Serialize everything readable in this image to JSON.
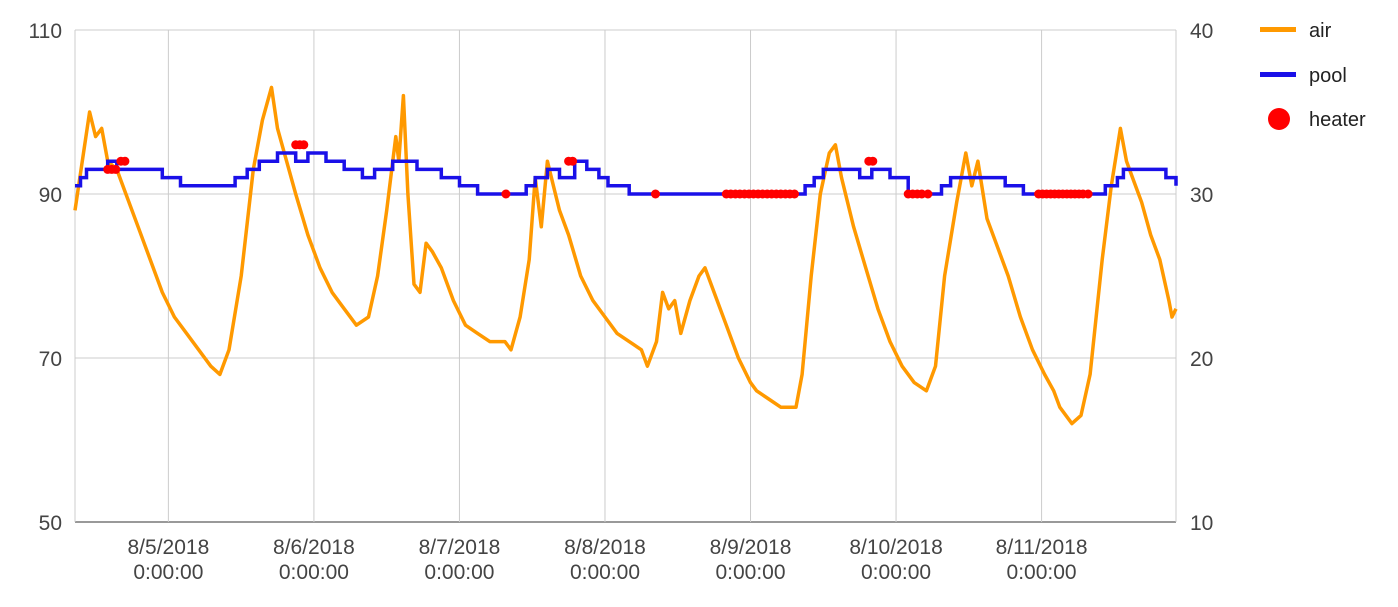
{
  "chart_data": {
    "type": "line",
    "title": "",
    "x_axis": {
      "type": "datetime",
      "range": [
        "2018-08-04T08:36:00",
        "2018-08-11T22:10:00"
      ],
      "tick_labels": [
        {
          "date": "8/5/2018",
          "time": "0:00:00",
          "x": "2018-08-05T00:00:00"
        },
        {
          "date": "8/6/2018",
          "time": "0:00:00",
          "x": "2018-08-06T00:00:00"
        },
        {
          "date": "8/7/2018",
          "time": "0:00:00",
          "x": "2018-08-07T00:00:00"
        },
        {
          "date": "8/8/2018",
          "time": "0:00:00",
          "x": "2018-08-08T00:00:00"
        },
        {
          "date": "8/9/2018",
          "time": "0:00:00",
          "x": "2018-08-09T00:00:00"
        },
        {
          "date": "8/10/2018",
          "time": "0:00:00",
          "x": "2018-08-10T00:00:00"
        },
        {
          "date": "8/11/2018",
          "time": "0:00:00",
          "x": "2018-08-11T00:00:00"
        }
      ]
    },
    "y_axis_left": {
      "ticks": [
        "50",
        "70",
        "90",
        "110"
      ],
      "range": [
        50,
        110
      ]
    },
    "y_axis_right": {
      "ticks": [
        "10",
        "20",
        "30",
        "40"
      ],
      "range": [
        10,
        40
      ]
    },
    "grid": true,
    "legend_position": "right",
    "series": [
      {
        "name": "air",
        "axis": "left",
        "color": "#ff9900",
        "style": "line",
        "points": [
          [
            "2018-08-04T08:36:00",
            88
          ],
          [
            "2018-08-04T10:00:00",
            95
          ],
          [
            "2018-08-04T11:00:00",
            100
          ],
          [
            "2018-08-04T12:00:00",
            97
          ],
          [
            "2018-08-04T13:00:00",
            98
          ],
          [
            "2018-08-04T14:00:00",
            94
          ],
          [
            "2018-08-04T15:30:00",
            93
          ],
          [
            "2018-08-04T17:00:00",
            90
          ],
          [
            "2018-08-04T19:00:00",
            86
          ],
          [
            "2018-08-04T21:00:00",
            82
          ],
          [
            "2018-08-04T23:00:00",
            78
          ],
          [
            "2018-08-05T01:00:00",
            75
          ],
          [
            "2018-08-05T03:00:00",
            73
          ],
          [
            "2018-08-05T05:00:00",
            71
          ],
          [
            "2018-08-05T07:00:00",
            69
          ],
          [
            "2018-08-05T08:30:00",
            68
          ],
          [
            "2018-08-05T10:00:00",
            71
          ],
          [
            "2018-08-05T12:00:00",
            80
          ],
          [
            "2018-08-05T14:00:00",
            93
          ],
          [
            "2018-08-05T15:30:00",
            99
          ],
          [
            "2018-08-05T17:00:00",
            103
          ],
          [
            "2018-08-05T18:00:00",
            98
          ],
          [
            "2018-08-05T19:30:00",
            94
          ],
          [
            "2018-08-05T21:00:00",
            90
          ],
          [
            "2018-08-05T23:00:00",
            85
          ],
          [
            "2018-08-06T01:00:00",
            81
          ],
          [
            "2018-08-06T03:00:00",
            78
          ],
          [
            "2018-08-06T05:00:00",
            76
          ],
          [
            "2018-08-06T07:00:00",
            74
          ],
          [
            "2018-08-06T09:00:00",
            75
          ],
          [
            "2018-08-06T10:30:00",
            80
          ],
          [
            "2018-08-06T12:00:00",
            88
          ],
          [
            "2018-08-06T13:30:00",
            97
          ],
          [
            "2018-08-06T14:00:00",
            94
          ],
          [
            "2018-08-06T14:45:00",
            102
          ],
          [
            "2018-08-06T15:30:00",
            90
          ],
          [
            "2018-08-06T16:30:00",
            79
          ],
          [
            "2018-08-06T17:30:00",
            78
          ],
          [
            "2018-08-06T18:30:00",
            84
          ],
          [
            "2018-08-06T19:30:00",
            83
          ],
          [
            "2018-08-06T21:00:00",
            81
          ],
          [
            "2018-08-06T23:00:00",
            77
          ],
          [
            "2018-08-07T01:00:00",
            74
          ],
          [
            "2018-08-07T03:00:00",
            73
          ],
          [
            "2018-08-07T05:00:00",
            72
          ],
          [
            "2018-08-07T07:30:00",
            72
          ],
          [
            "2018-08-07T08:30:00",
            71
          ],
          [
            "2018-08-07T10:00:00",
            75
          ],
          [
            "2018-08-07T11:30:00",
            82
          ],
          [
            "2018-08-07T12:30:00",
            92
          ],
          [
            "2018-08-07T13:30:00",
            86
          ],
          [
            "2018-08-07T14:30:00",
            94
          ],
          [
            "2018-08-07T15:30:00",
            91
          ],
          [
            "2018-08-07T16:30:00",
            88
          ],
          [
            "2018-08-07T18:00:00",
            85
          ],
          [
            "2018-08-07T20:00:00",
            80
          ],
          [
            "2018-08-07T22:00:00",
            77
          ],
          [
            "2018-08-08T00:00:00",
            75
          ],
          [
            "2018-08-08T02:00:00",
            73
          ],
          [
            "2018-08-08T04:00:00",
            72
          ],
          [
            "2018-08-08T06:00:00",
            71
          ],
          [
            "2018-08-08T07:00:00",
            69
          ],
          [
            "2018-08-08T08:30:00",
            72
          ],
          [
            "2018-08-08T09:30:00",
            78
          ],
          [
            "2018-08-08T10:30:00",
            76
          ],
          [
            "2018-08-08T11:30:00",
            77
          ],
          [
            "2018-08-08T12:30:00",
            73
          ],
          [
            "2018-08-08T14:00:00",
            77
          ],
          [
            "2018-08-08T15:30:00",
            80
          ],
          [
            "2018-08-08T16:30:00",
            81
          ],
          [
            "2018-08-08T18:00:00",
            78
          ],
          [
            "2018-08-08T20:00:00",
            74
          ],
          [
            "2018-08-08T22:00:00",
            70
          ],
          [
            "2018-08-09T00:00:00",
            67
          ],
          [
            "2018-08-09T01:00:00",
            66
          ],
          [
            "2018-08-09T03:00:00",
            65
          ],
          [
            "2018-08-09T05:00:00",
            64
          ],
          [
            "2018-08-09T07:30:00",
            64
          ],
          [
            "2018-08-09T08:30:00",
            68
          ],
          [
            "2018-08-09T10:00:00",
            80
          ],
          [
            "2018-08-09T11:30:00",
            90
          ],
          [
            "2018-08-09T13:00:00",
            95
          ],
          [
            "2018-08-09T14:00:00",
            96
          ],
          [
            "2018-08-09T15:00:00",
            92
          ],
          [
            "2018-08-09T17:00:00",
            86
          ],
          [
            "2018-08-09T19:00:00",
            81
          ],
          [
            "2018-08-09T21:00:00",
            76
          ],
          [
            "2018-08-09T23:00:00",
            72
          ],
          [
            "2018-08-10T01:00:00",
            69
          ],
          [
            "2018-08-10T03:00:00",
            67
          ],
          [
            "2018-08-10T05:00:00",
            66
          ],
          [
            "2018-08-10T06:30:00",
            69
          ],
          [
            "2018-08-10T08:00:00",
            80
          ],
          [
            "2018-08-10T10:00:00",
            89
          ],
          [
            "2018-08-10T11:30:00",
            95
          ],
          [
            "2018-08-10T12:30:00",
            91
          ],
          [
            "2018-08-10T13:30:00",
            94
          ],
          [
            "2018-08-10T15:00:00",
            87
          ],
          [
            "2018-08-10T16:30:00",
            84
          ],
          [
            "2018-08-10T18:30:00",
            80
          ],
          [
            "2018-08-10T20:30:00",
            75
          ],
          [
            "2018-08-10T22:30:00",
            71
          ],
          [
            "2018-08-11T00:30:00",
            68
          ],
          [
            "2018-08-11T02:00:00",
            66
          ],
          [
            "2018-08-11T03:00:00",
            64
          ],
          [
            "2018-08-11T05:00:00",
            62
          ],
          [
            "2018-08-11T06:30:00",
            63
          ],
          [
            "2018-08-11T08:00:00",
            68
          ],
          [
            "2018-08-11T10:00:00",
            82
          ],
          [
            "2018-08-11T11:30:00",
            91
          ],
          [
            "2018-08-11T13:00:00",
            98
          ],
          [
            "2018-08-11T14:00:00",
            94
          ],
          [
            "2018-08-11T15:00:00",
            92
          ],
          [
            "2018-08-11T16:30:00",
            89
          ],
          [
            "2018-08-11T18:00:00",
            85
          ],
          [
            "2018-08-11T19:30:00",
            82
          ],
          [
            "2018-08-11T21:00:00",
            77
          ],
          [
            "2018-08-11T21:30:00",
            75
          ],
          [
            "2018-08-11T22:10:00",
            76
          ]
        ]
      },
      {
        "name": "pool",
        "axis": "right",
        "color": "#1a10e8",
        "style": "step",
        "points": [
          [
            "2018-08-04T08:36:00",
            30.5
          ],
          [
            "2018-08-04T09:30:00",
            31
          ],
          [
            "2018-08-04T10:30:00",
            31.5
          ],
          [
            "2018-08-04T14:00:00",
            32
          ],
          [
            "2018-08-04T15:30:00",
            31.5
          ],
          [
            "2018-08-04T19:00:00",
            31.5
          ],
          [
            "2018-08-04T23:00:00",
            31
          ],
          [
            "2018-08-05T02:00:00",
            30.5
          ],
          [
            "2018-08-05T08:30:00",
            30.5
          ],
          [
            "2018-08-05T11:00:00",
            31
          ],
          [
            "2018-08-05T13:00:00",
            31.5
          ],
          [
            "2018-08-05T15:00:00",
            32
          ],
          [
            "2018-08-05T18:00:00",
            32.5
          ],
          [
            "2018-08-05T21:00:00",
            32
          ],
          [
            "2018-08-05T23:00:00",
            32.5
          ],
          [
            "2018-08-06T02:00:00",
            32
          ],
          [
            "2018-08-06T05:00:00",
            31.5
          ],
          [
            "2018-08-06T08:00:00",
            31
          ],
          [
            "2018-08-06T10:00:00",
            31.5
          ],
          [
            "2018-08-06T13:00:00",
            32
          ],
          [
            "2018-08-06T17:00:00",
            31.5
          ],
          [
            "2018-08-06T21:00:00",
            31
          ],
          [
            "2018-08-07T00:00:00",
            30.5
          ],
          [
            "2018-08-07T03:00:00",
            30
          ],
          [
            "2018-08-07T11:00:00",
            30.5
          ],
          [
            "2018-08-07T12:30:00",
            31
          ],
          [
            "2018-08-07T14:30:00",
            31.5
          ],
          [
            "2018-08-07T16:30:00",
            31
          ],
          [
            "2018-08-07T19:00:00",
            32
          ],
          [
            "2018-08-07T21:00:00",
            31.5
          ],
          [
            "2018-08-07T23:00:00",
            31
          ],
          [
            "2018-08-08T00:30:00",
            30.5
          ],
          [
            "2018-08-08T04:00:00",
            30
          ],
          [
            "2018-08-09T09:00:00",
            30.5
          ],
          [
            "2018-08-09T10:30:00",
            31
          ],
          [
            "2018-08-09T12:00:00",
            31.5
          ],
          [
            "2018-08-09T18:00:00",
            31
          ],
          [
            "2018-08-09T20:00:00",
            31.5
          ],
          [
            "2018-08-09T23:00:00",
            31
          ],
          [
            "2018-08-10T02:00:00",
            30
          ],
          [
            "2018-08-10T07:30:00",
            30.5
          ],
          [
            "2018-08-10T09:00:00",
            31
          ],
          [
            "2018-08-10T11:00:00",
            31
          ],
          [
            "2018-08-10T14:30:00",
            31
          ],
          [
            "2018-08-10T18:00:00",
            30.5
          ],
          [
            "2018-08-10T21:00:00",
            30
          ],
          [
            "2018-08-11T08:00:00",
            30
          ],
          [
            "2018-08-11T10:30:00",
            30.5
          ],
          [
            "2018-08-11T12:30:00",
            31
          ],
          [
            "2018-08-11T13:30:00",
            31.5
          ],
          [
            "2018-08-11T19:00:00",
            31.5
          ],
          [
            "2018-08-11T20:30:00",
            31
          ],
          [
            "2018-08-11T22:10:00",
            30.5
          ]
        ]
      },
      {
        "name": "heater",
        "axis": "right",
        "color": "#ff0000",
        "style": "points",
        "points": [
          [
            "2018-08-04T14:00:00",
            31.5
          ],
          [
            "2018-08-04T14:40:00",
            31.5
          ],
          [
            "2018-08-04T15:20:00",
            31.5
          ],
          [
            "2018-08-04T16:10:00",
            32
          ],
          [
            "2018-08-04T16:50:00",
            32
          ],
          [
            "2018-08-05T21:00:00",
            33
          ],
          [
            "2018-08-05T21:40:00",
            33
          ],
          [
            "2018-08-05T22:20:00",
            33
          ],
          [
            "2018-08-07T07:40:00",
            30
          ],
          [
            "2018-08-07T18:00:00",
            32
          ],
          [
            "2018-08-07T18:40:00",
            32
          ],
          [
            "2018-08-08T08:20:00",
            30
          ],
          [
            "2018-08-08T20:00:00",
            30
          ],
          [
            "2018-08-08T20:45:00",
            30
          ],
          [
            "2018-08-08T21:30:00",
            30
          ],
          [
            "2018-08-08T22:15:00",
            30
          ],
          [
            "2018-08-08T23:00:00",
            30
          ],
          [
            "2018-08-08T23:45:00",
            30
          ],
          [
            "2018-08-09T00:30:00",
            30
          ],
          [
            "2018-08-09T01:15:00",
            30
          ],
          [
            "2018-08-09T02:00:00",
            30
          ],
          [
            "2018-08-09T02:45:00",
            30
          ],
          [
            "2018-08-09T03:30:00",
            30
          ],
          [
            "2018-08-09T04:15:00",
            30
          ],
          [
            "2018-08-09T05:00:00",
            30
          ],
          [
            "2018-08-09T05:45:00",
            30
          ],
          [
            "2018-08-09T06:30:00",
            30
          ],
          [
            "2018-08-09T07:15:00",
            30
          ],
          [
            "2018-08-09T19:30:00",
            32
          ],
          [
            "2018-08-09T20:10:00",
            32
          ],
          [
            "2018-08-10T02:00:00",
            30
          ],
          [
            "2018-08-10T02:45:00",
            30
          ],
          [
            "2018-08-10T03:30:00",
            30
          ],
          [
            "2018-08-10T04:15:00",
            30
          ],
          [
            "2018-08-10T05:15:00",
            30
          ],
          [
            "2018-08-10T23:30:00",
            30
          ],
          [
            "2018-08-11T00:10:00",
            30
          ],
          [
            "2018-08-11T00:50:00",
            30
          ],
          [
            "2018-08-11T01:30:00",
            30
          ],
          [
            "2018-08-11T02:10:00",
            30
          ],
          [
            "2018-08-11T02:50:00",
            30
          ],
          [
            "2018-08-11T03:30:00",
            30
          ],
          [
            "2018-08-11T04:10:00",
            30
          ],
          [
            "2018-08-11T04:50:00",
            30
          ],
          [
            "2018-08-11T05:30:00",
            30
          ],
          [
            "2018-08-11T06:10:00",
            30
          ],
          [
            "2018-08-11T06:50:00",
            30
          ],
          [
            "2018-08-11T07:40:00",
            30
          ]
        ]
      }
    ],
    "legend": [
      {
        "label": "air",
        "color": "#ff9900",
        "marker": "line"
      },
      {
        "label": "pool",
        "color": "#1a10e8",
        "marker": "line"
      },
      {
        "label": "heater",
        "color": "#ff0000",
        "marker": "circle"
      }
    ]
  }
}
